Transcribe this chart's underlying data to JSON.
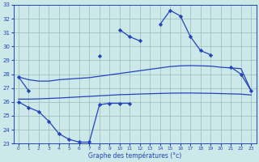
{
  "hours": [
    0,
    1,
    2,
    3,
    4,
    5,
    6,
    7,
    8,
    9,
    10,
    11,
    12,
    13,
    14,
    15,
    16,
    17,
    18,
    19,
    20,
    21,
    22,
    23
  ],
  "high": [
    27.8,
    26.8,
    null,
    null,
    null,
    null,
    null,
    null,
    29.3,
    null,
    31.2,
    30.7,
    30.4,
    null,
    31.6,
    32.6,
    32.2,
    30.7,
    29.7,
    29.4,
    null,
    28.5,
    28.0,
    26.8
  ],
  "upper_avg": [
    27.8,
    27.6,
    27.5,
    27.5,
    27.6,
    27.65,
    27.7,
    27.75,
    27.85,
    27.95,
    28.05,
    28.15,
    28.25,
    28.35,
    28.45,
    28.55,
    28.6,
    28.62,
    28.6,
    28.58,
    28.5,
    28.45,
    28.4,
    26.8
  ],
  "lower_avg": [
    26.2,
    26.2,
    26.22,
    26.25,
    26.28,
    26.32,
    26.36,
    26.4,
    26.44,
    26.48,
    26.52,
    26.54,
    26.57,
    26.59,
    26.61,
    26.63,
    26.64,
    26.64,
    26.63,
    26.62,
    26.6,
    26.58,
    26.56,
    26.5
  ],
  "low": [
    26.0,
    25.6,
    25.3,
    24.6,
    23.7,
    23.3,
    23.1,
    23.1,
    25.8,
    25.9,
    25.9,
    25.9,
    null,
    null,
    null,
    null,
    null,
    null,
    null,
    null,
    null,
    null,
    null,
    null
  ],
  "ylim": [
    23,
    33
  ],
  "yticks": [
    23,
    24,
    25,
    26,
    27,
    28,
    29,
    30,
    31,
    32,
    33
  ],
  "xticks": [
    0,
    1,
    2,
    3,
    4,
    5,
    6,
    7,
    8,
    9,
    10,
    11,
    12,
    13,
    14,
    15,
    16,
    17,
    18,
    19,
    20,
    21,
    22,
    23
  ],
  "xlabel": "Graphe des températures (°c)",
  "line_color": "#2244bb",
  "bg_color": "#cce8e8",
  "grid_color": "#99bbbb"
}
